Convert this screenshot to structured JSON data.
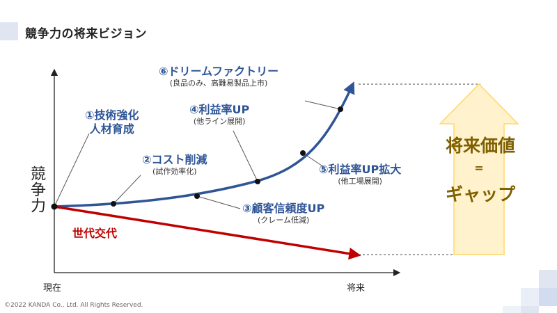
{
  "title": "競争力の将来ビジョン",
  "axes": {
    "y": "競争力",
    "x_start": "現在",
    "x_end": "将来"
  },
  "milestones": [
    {
      "main": "①技術強化",
      "main2": "人材育成",
      "sub": ""
    },
    {
      "main": "②コスト削減",
      "sub": "(試作効率化)"
    },
    {
      "main": "③顧客信頼度UP",
      "sub": "(クレーム低減)"
    },
    {
      "main": "④利益率UP",
      "sub": "(他ライン展開)"
    },
    {
      "main": "⑤利益率UP拡大",
      "sub": "(他工場展開)"
    },
    {
      "main": "⑥ドリームファクトリー",
      "sub": "(良品のみ、高難易製品上市)"
    }
  ],
  "decline_label": "世代交代",
  "gap": {
    "line1": "将来価値",
    "line2": "=",
    "line3": "ギャップ"
  },
  "copyright": "©2022 KANDA Co., Ltd. All Rights Reserved.",
  "colors": {
    "growth": "#2f5597",
    "decline": "#c00000",
    "gap_fill": "#fff2cc",
    "gap_stroke": "#ffd966",
    "gap_text": "#7f6000"
  }
}
